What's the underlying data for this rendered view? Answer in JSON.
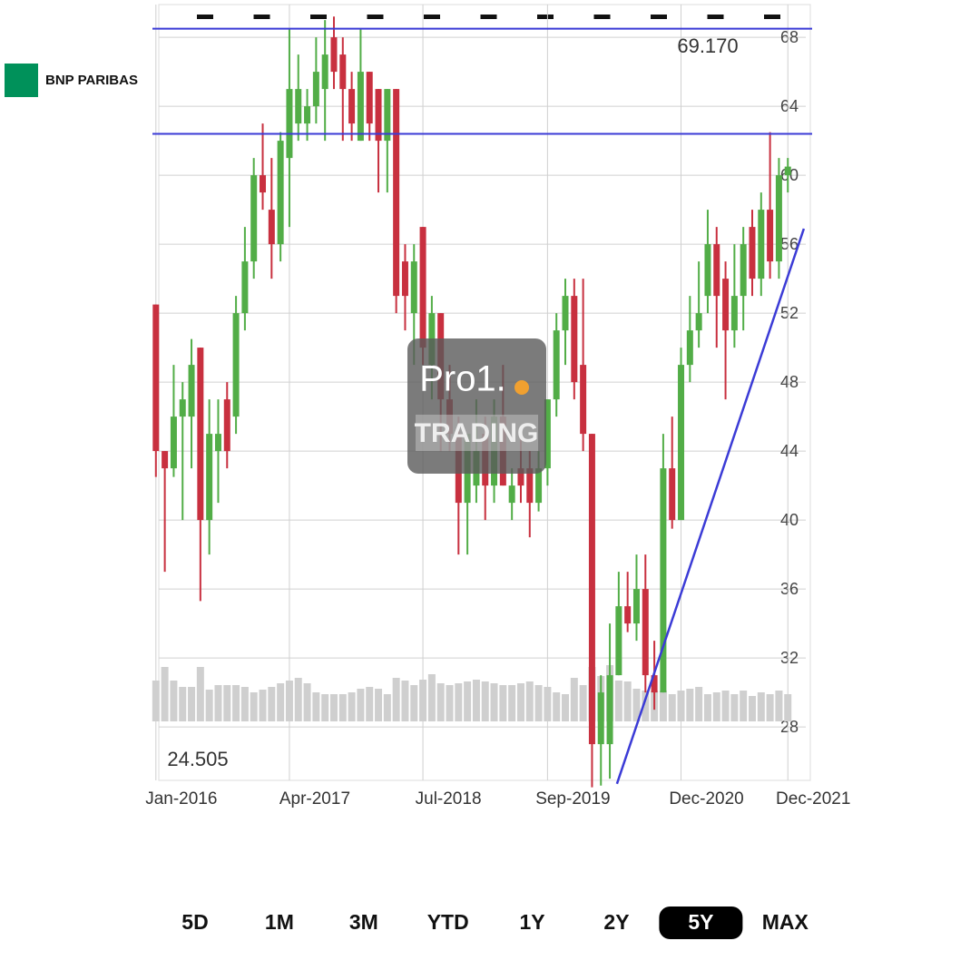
{
  "brand": "BNP PARIBAS",
  "chart_data": {
    "type": "candlestick",
    "watermark": {
      "top": "Pro1.",
      "bottom": "TRADING"
    },
    "annotations": [
      {
        "text": "69.170",
        "value": 69.17
      },
      {
        "text": "24.505",
        "value": 24.505
      }
    ],
    "hlines": [
      68.5,
      62.4
    ],
    "trendline": {
      "x": [
        51.8,
        72.8
      ],
      "y": [
        24.7,
        56.9
      ]
    },
    "ylim": [
      24.9,
      69.9
    ],
    "yticks": [
      28,
      32,
      36,
      40,
      44,
      48,
      52,
      56,
      60,
      64,
      68
    ],
    "xlim": [
      -1,
      72.2
    ],
    "xticks": [
      {
        "value": 0,
        "label": "Jan-2016"
      },
      {
        "value": 15,
        "label": "Apr-2017"
      },
      {
        "value": 30,
        "label": "Jul-2018"
      },
      {
        "value": 44,
        "label": "Sep-2019"
      },
      {
        "value": 59,
        "label": "Dec-2020"
      },
      {
        "value": 71,
        "label": "Dec-2021"
      }
    ],
    "up_color": "#52ad47",
    "down_color": "#c8303f",
    "volume_color": "#cfcfcf",
    "line_color": "#3b3bd6",
    "open": [
      52.5,
      44,
      43,
      46,
      46,
      50,
      40,
      44,
      47,
      46,
      52,
      55,
      60,
      58,
      56,
      61,
      63,
      63,
      64,
      65,
      68,
      67,
      65,
      62,
      66,
      65,
      62,
      65,
      55,
      52,
      57,
      49,
      52,
      47,
      45,
      41,
      42,
      45,
      42,
      46,
      41,
      43,
      43,
      41,
      43,
      47,
      51,
      53,
      49,
      45,
      27,
      27,
      31,
      35,
      34,
      36,
      31,
      30,
      43,
      40,
      49,
      51,
      53,
      56,
      54,
      51,
      53,
      57,
      54,
      58,
      55,
      60
    ],
    "high": [
      52.5,
      44,
      49,
      48,
      50.5,
      50,
      47,
      47,
      48,
      53,
      57,
      61,
      63,
      61,
      62.5,
      68.5,
      67,
      65,
      68,
      69,
      69.2,
      68,
      66,
      68.5,
      66,
      65,
      65,
      65,
      56,
      56,
      57,
      53,
      52,
      49,
      46,
      45,
      47,
      46,
      47,
      49,
      43,
      45,
      44,
      44,
      47,
      52,
      54,
      54,
      54,
      45,
      31,
      34,
      37,
      37,
      38,
      38,
      33,
      45,
      46,
      50,
      53,
      55,
      58,
      57,
      55,
      56,
      57,
      58,
      59,
      62.5,
      61,
      61
    ],
    "low": [
      42.5,
      37,
      42.5,
      40,
      43,
      35.3,
      38,
      41,
      43,
      45,
      51,
      54,
      58,
      54,
      55,
      57,
      62,
      62,
      63,
      62,
      65,
      62,
      62,
      62,
      62,
      59,
      59,
      52,
      51,
      49,
      49,
      47,
      44,
      44,
      38,
      38,
      41,
      40,
      41,
      42,
      40,
      41,
      39,
      40.5,
      42,
      46,
      49,
      47,
      44,
      24.5,
      24.6,
      25,
      31,
      33.5,
      33,
      30,
      29,
      30,
      39.5,
      40,
      48,
      50,
      52,
      50,
      47,
      50,
      51,
      53,
      53,
      54,
      54,
      59
    ],
    "close": [
      44,
      43,
      46,
      47,
      49,
      40,
      45,
      45,
      44,
      52,
      55,
      60,
      59,
      56,
      62,
      65,
      65,
      64,
      66,
      67,
      66,
      65,
      63,
      66,
      63,
      62,
      65,
      53,
      53,
      55,
      50,
      52,
      47,
      45,
      41,
      45,
      44,
      42,
      46,
      42,
      42,
      42,
      41,
      43,
      47,
      51,
      53,
      48,
      45,
      27,
      30,
      31,
      35,
      34,
      36,
      31,
      30,
      43,
      40,
      49,
      51,
      52,
      56,
      53,
      51,
      53,
      56,
      54,
      58,
      55,
      60,
      60.5
    ],
    "volume": [
      45,
      60,
      45,
      38,
      38,
      60,
      35,
      40,
      40,
      40,
      38,
      32,
      35,
      38,
      42,
      45,
      48,
      42,
      32,
      30,
      30,
      30,
      32,
      36,
      38,
      36,
      30,
      48,
      45,
      40,
      46,
      52,
      42,
      40,
      42,
      44,
      46,
      44,
      42,
      40,
      40,
      42,
      44,
      40,
      38,
      32,
      30,
      48,
      40,
      60,
      50,
      62,
      45,
      44,
      36,
      34,
      34,
      34,
      30,
      34,
      36,
      38,
      30,
      32,
      34,
      30,
      34,
      28,
      32,
      30,
      34,
      30
    ],
    "ranges": [
      "5D",
      "1M",
      "3M",
      "YTD",
      "1Y",
      "2Y",
      "5Y",
      "MAX"
    ],
    "selected_range": "5Y"
  }
}
